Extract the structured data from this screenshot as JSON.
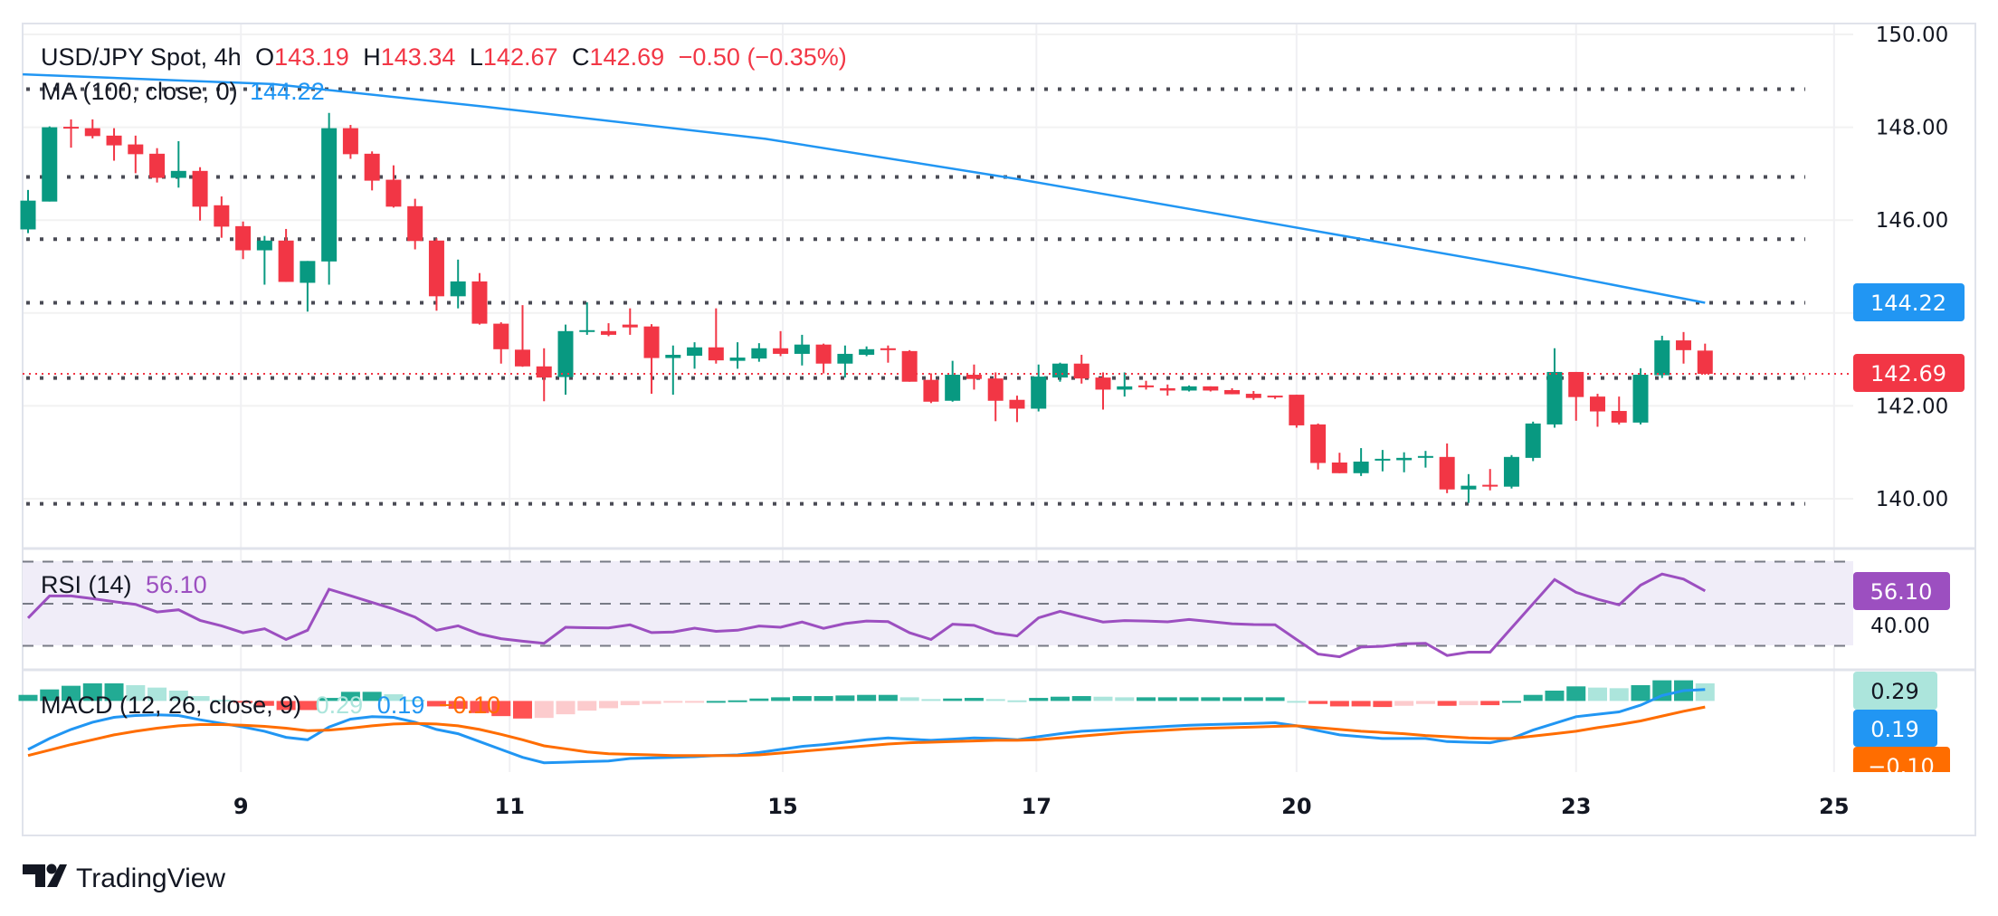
{
  "header": {
    "symbol": "USD/JPY Spot, 4h",
    "o_label": "O",
    "open": "143.19",
    "h_label": "H",
    "high": "143.34",
    "l_label": "L",
    "low": "142.67",
    "c_label": "C",
    "close": "142.69",
    "change": "−0.50 (−0.35%)"
  },
  "ma_legend": {
    "label": "MA (100, close, 0)",
    "value": "144.22"
  },
  "rsi_legend": {
    "label": "RSI (14)",
    "value": "56.10"
  },
  "macd_legend": {
    "label": "MACD (12, 26, close, 9)",
    "hist": "0.29",
    "macd": "0.19",
    "signal": "−0.10"
  },
  "price_axis": {
    "ticks": [
      "150.00",
      "148.00",
      "146.00",
      "142.00",
      "140.00"
    ]
  },
  "rsi_axis": {
    "ticks": [
      "40.00"
    ]
  },
  "value_labels": {
    "ma": "144.22",
    "last": "142.69",
    "rsi": "56.10",
    "hist": "0.29",
    "macd": "0.19",
    "signal": "−0.10"
  },
  "time_axis": {
    "ticks": [
      {
        "label": "9",
        "bar": 10.9
      },
      {
        "label": "11",
        "bar": 23.4
      },
      {
        "label": "15",
        "bar": 36.1
      },
      {
        "label": "17",
        "bar": 47.9
      },
      {
        "label": "20",
        "bar": 60.0
      },
      {
        "label": "23",
        "bar": 73.0
      },
      {
        "label": "25",
        "bar": 85.0
      }
    ]
  },
  "brand": "TradingView",
  "colors": {
    "up": "#089981",
    "down": "#F23645",
    "ma": "#2196F3",
    "rsi": "#9C4FC0",
    "macd": "#2196F3",
    "signal": "#FF6D00",
    "hist_up_strong": "#22AB94",
    "hist_up_weak": "#ACE5DC",
    "hist_down_strong": "#FF5252",
    "hist_down_weak": "#FCCBCD",
    "level": "#4A4B55"
  },
  "chart_data": [
    {
      "type": "candlestick",
      "title": "USD/JPY Spot, 4h",
      "ylim": [
        139.3,
        150.3
      ],
      "ohlc": [
        [
          145.8,
          146.65,
          145.72,
          146.42
        ],
        [
          146.4,
          148.02,
          146.4,
          148.0
        ],
        [
          148.01,
          148.17,
          147.56,
          147.99
        ],
        [
          147.98,
          148.17,
          147.76,
          147.81
        ],
        [
          147.82,
          147.98,
          147.28,
          147.61
        ],
        [
          147.63,
          147.82,
          147.01,
          147.42
        ],
        [
          147.43,
          147.55,
          146.81,
          146.91
        ],
        [
          146.91,
          147.7,
          146.7,
          147.06
        ],
        [
          147.06,
          147.14,
          145.99,
          146.29
        ],
        [
          146.32,
          146.51,
          145.62,
          145.86
        ],
        [
          145.87,
          145.97,
          145.16,
          145.35
        ],
        [
          145.35,
          145.66,
          144.61,
          145.56
        ],
        [
          145.56,
          145.81,
          144.67,
          144.67
        ],
        [
          144.65,
          145.12,
          144.03,
          145.12
        ],
        [
          145.11,
          148.31,
          144.61,
          147.98
        ],
        [
          147.98,
          148.05,
          147.32,
          147.42
        ],
        [
          147.43,
          147.48,
          146.64,
          146.85
        ],
        [
          146.87,
          147.18,
          146.27,
          146.29
        ],
        [
          146.3,
          146.46,
          145.37,
          145.55
        ],
        [
          145.56,
          145.61,
          144.05,
          144.36
        ],
        [
          144.36,
          145.15,
          144.1,
          144.68
        ],
        [
          144.68,
          144.86,
          143.75,
          143.77
        ],
        [
          143.77,
          143.8,
          142.91,
          143.22
        ],
        [
          143.21,
          144.17,
          142.84,
          142.85
        ],
        [
          142.85,
          143.24,
          142.1,
          142.61
        ],
        [
          142.62,
          143.75,
          142.24,
          143.61
        ],
        [
          143.62,
          144.23,
          143.53,
          143.63
        ],
        [
          143.61,
          143.78,
          143.5,
          143.53
        ],
        [
          143.75,
          144.1,
          143.53,
          143.69
        ],
        [
          143.71,
          143.76,
          142.26,
          143.03
        ],
        [
          143.03,
          143.3,
          142.24,
          143.1
        ],
        [
          143.08,
          143.37,
          142.8,
          143.26
        ],
        [
          143.26,
          144.1,
          142.91,
          142.98
        ],
        [
          142.97,
          143.37,
          142.8,
          143.04
        ],
        [
          143.02,
          143.35,
          142.95,
          143.24
        ],
        [
          143.24,
          143.61,
          143.07,
          143.12
        ],
        [
          143.12,
          143.53,
          142.87,
          143.32
        ],
        [
          143.32,
          143.34,
          142.7,
          142.91
        ],
        [
          142.91,
          143.3,
          142.61,
          143.12
        ],
        [
          143.1,
          143.28,
          143.07,
          143.22
        ],
        [
          143.24,
          143.3,
          142.93,
          143.2
        ],
        [
          143.18,
          143.2,
          142.52,
          142.52
        ],
        [
          142.56,
          142.7,
          142.06,
          142.09
        ],
        [
          142.11,
          142.97,
          142.09,
          142.67
        ],
        [
          142.67,
          142.89,
          142.35,
          142.58
        ],
        [
          142.59,
          142.72,
          141.67,
          142.11
        ],
        [
          142.13,
          142.22,
          141.65,
          141.94
        ],
        [
          141.94,
          142.89,
          141.88,
          142.63
        ],
        [
          142.61,
          142.93,
          142.52,
          142.91
        ],
        [
          142.91,
          143.1,
          142.48,
          142.59
        ],
        [
          142.61,
          142.72,
          141.92,
          142.35
        ],
        [
          142.35,
          142.72,
          142.2,
          142.42
        ],
        [
          142.44,
          142.54,
          142.35,
          142.4
        ],
        [
          142.38,
          142.46,
          142.22,
          142.33
        ],
        [
          142.33,
          142.44,
          142.31,
          142.42
        ],
        [
          142.42,
          142.42,
          142.31,
          142.33
        ],
        [
          142.34,
          142.38,
          142.25,
          142.25
        ],
        [
          142.26,
          142.32,
          142.13,
          142.17
        ],
        [
          142.22,
          142.22,
          142.15,
          142.19
        ],
        [
          142.24,
          142.24,
          141.53,
          141.58
        ],
        [
          141.6,
          141.62,
          140.63,
          140.77
        ],
        [
          140.78,
          140.99,
          140.55,
          140.55
        ],
        [
          140.55,
          141.09,
          140.49,
          140.8
        ],
        [
          140.83,
          141.05,
          140.59,
          140.86
        ],
        [
          140.83,
          141.0,
          140.57,
          140.88
        ],
        [
          140.9,
          141.03,
          140.67,
          140.92
        ],
        [
          140.9,
          141.19,
          140.12,
          140.2
        ],
        [
          140.2,
          140.53,
          139.91,
          140.28
        ],
        [
          140.3,
          140.64,
          140.18,
          140.28
        ],
        [
          140.26,
          140.94,
          140.22,
          140.9
        ],
        [
          140.88,
          141.66,
          140.81,
          141.62
        ],
        [
          141.6,
          143.24,
          141.53,
          142.73
        ],
        [
          142.73,
          142.73,
          141.68,
          142.19
        ],
        [
          142.2,
          142.26,
          141.55,
          141.88
        ],
        [
          141.89,
          142.2,
          141.6,
          141.64
        ],
        [
          141.64,
          142.81,
          141.6,
          142.67
        ],
        [
          142.66,
          143.51,
          142.6,
          143.41
        ],
        [
          143.41,
          143.59,
          142.91,
          143.2
        ],
        [
          143.19,
          143.34,
          142.67,
          142.69
        ]
      ],
      "ma100": [
        [
          0.75,
          149.14
        ],
        [
          12.4,
          148.93
        ],
        [
          22.3,
          148.44
        ],
        [
          35.3,
          147.75
        ],
        [
          47.1,
          146.88
        ],
        [
          59,
          145.92
        ],
        [
          70.8,
          144.96
        ],
        [
          79,
          144.22
        ]
      ],
      "horizontal_levels": [
        148.82,
        146.93,
        145.59,
        144.22,
        142.6,
        139.89
      ],
      "last_price": 142.69
    },
    {
      "type": "line",
      "title": "RSI (14)",
      "ylim": [
        0,
        100
      ],
      "bands": [
        30,
        50,
        70
      ],
      "values": [
        43.2,
        53.7,
        53.7,
        52.4,
        51.0,
        49.7,
        46.1,
        47.1,
        42.1,
        39.5,
        36.2,
        38.1,
        33.0,
        37.4,
        56.9,
        53.8,
        50.6,
        47.5,
        43.6,
        37.4,
        39.5,
        35.6,
        33.4,
        32.2,
        31.2,
        38.8,
        38.6,
        38.5,
        40.0,
        36.3,
        36.6,
        38.4,
        36.9,
        37.4,
        39.4,
        38.8,
        41.3,
        38.3,
        40.6,
        41.8,
        41.5,
        36.2,
        33.0,
        40.3,
        39.7,
        36.0,
        34.7,
        43.3,
        46.4,
        43.8,
        41.3,
        42.0,
        41.8,
        41.4,
        42.5,
        41.5,
        40.5,
        40.1,
        40.0,
        33.0,
        26.1,
        24.8,
        29.4,
        29.8,
        31.0,
        31.2,
        25.4,
        27.0,
        27.0,
        38.5,
        50.0,
        61.5,
        55.4,
        52.1,
        49.5,
        58.8,
        64.1,
        61.7,
        56.1
      ]
    },
    {
      "type": "bar",
      "title": "MACD (12, 26, close, 9)",
      "macd": [
        -0.8,
        -0.62,
        -0.47,
        -0.35,
        -0.27,
        -0.24,
        -0.23,
        -0.24,
        -0.31,
        -0.37,
        -0.43,
        -0.5,
        -0.6,
        -0.64,
        -0.43,
        -0.3,
        -0.26,
        -0.27,
        -0.35,
        -0.47,
        -0.54,
        -0.67,
        -0.8,
        -0.93,
        -1.02,
        -1.01,
        -1.0,
        -0.99,
        -0.95,
        -0.94,
        -0.93,
        -0.92,
        -0.9,
        -0.89,
        -0.85,
        -0.8,
        -0.75,
        -0.72,
        -0.68,
        -0.64,
        -0.61,
        -0.63,
        -0.65,
        -0.63,
        -0.61,
        -0.62,
        -0.64,
        -0.59,
        -0.54,
        -0.5,
        -0.48,
        -0.46,
        -0.44,
        -0.42,
        -0.4,
        -0.39,
        -0.38,
        -0.37,
        -0.36,
        -0.41,
        -0.49,
        -0.56,
        -0.59,
        -0.62,
        -0.62,
        -0.62,
        -0.67,
        -0.68,
        -0.69,
        -0.62,
        -0.48,
        -0.37,
        -0.26,
        -0.22,
        -0.18,
        -0.07,
        0.09,
        0.17,
        0.19
      ],
      "signal": [
        -0.9,
        -0.81,
        -0.72,
        -0.64,
        -0.56,
        -0.5,
        -0.45,
        -0.41,
        -0.39,
        -0.39,
        -0.4,
        -0.42,
        -0.45,
        -0.49,
        -0.48,
        -0.45,
        -0.41,
        -0.38,
        -0.37,
        -0.38,
        -0.41,
        -0.47,
        -0.55,
        -0.64,
        -0.74,
        -0.79,
        -0.84,
        -0.87,
        -0.88,
        -0.89,
        -0.9,
        -0.9,
        -0.9,
        -0.9,
        -0.89,
        -0.86,
        -0.83,
        -0.8,
        -0.77,
        -0.74,
        -0.71,
        -0.69,
        -0.68,
        -0.67,
        -0.66,
        -0.65,
        -0.65,
        -0.64,
        -0.61,
        -0.58,
        -0.55,
        -0.52,
        -0.5,
        -0.48,
        -0.46,
        -0.45,
        -0.44,
        -0.43,
        -0.42,
        -0.41,
        -0.44,
        -0.47,
        -0.5,
        -0.52,
        -0.54,
        -0.57,
        -0.59,
        -0.61,
        -0.62,
        -0.62,
        -0.58,
        -0.54,
        -0.5,
        -0.44,
        -0.39,
        -0.33,
        -0.25,
        -0.17,
        -0.1
      ],
      "histogram": [
        0.1,
        0.19,
        0.25,
        0.29,
        0.29,
        0.26,
        0.22,
        0.17,
        0.08,
        0.02,
        -0.03,
        -0.08,
        -0.15,
        -0.15,
        0.05,
        0.15,
        0.15,
        0.11,
        0.02,
        -0.09,
        -0.13,
        -0.2,
        -0.25,
        -0.29,
        -0.28,
        -0.22,
        -0.16,
        -0.12,
        -0.07,
        -0.05,
        -0.03,
        -0.02,
        0.0,
        0.01,
        0.04,
        0.06,
        0.08,
        0.08,
        0.09,
        0.1,
        0.1,
        0.06,
        0.03,
        0.04,
        0.05,
        0.03,
        0.01,
        0.05,
        0.07,
        0.08,
        0.07,
        0.06,
        0.06,
        0.06,
        0.06,
        0.06,
        0.06,
        0.06,
        0.06,
        0.0,
        -0.05,
        -0.09,
        -0.09,
        -0.1,
        -0.08,
        -0.05,
        -0.08,
        -0.07,
        -0.07,
        0.0,
        0.1,
        0.17,
        0.24,
        0.22,
        0.21,
        0.26,
        0.34,
        0.34,
        0.29
      ]
    }
  ]
}
